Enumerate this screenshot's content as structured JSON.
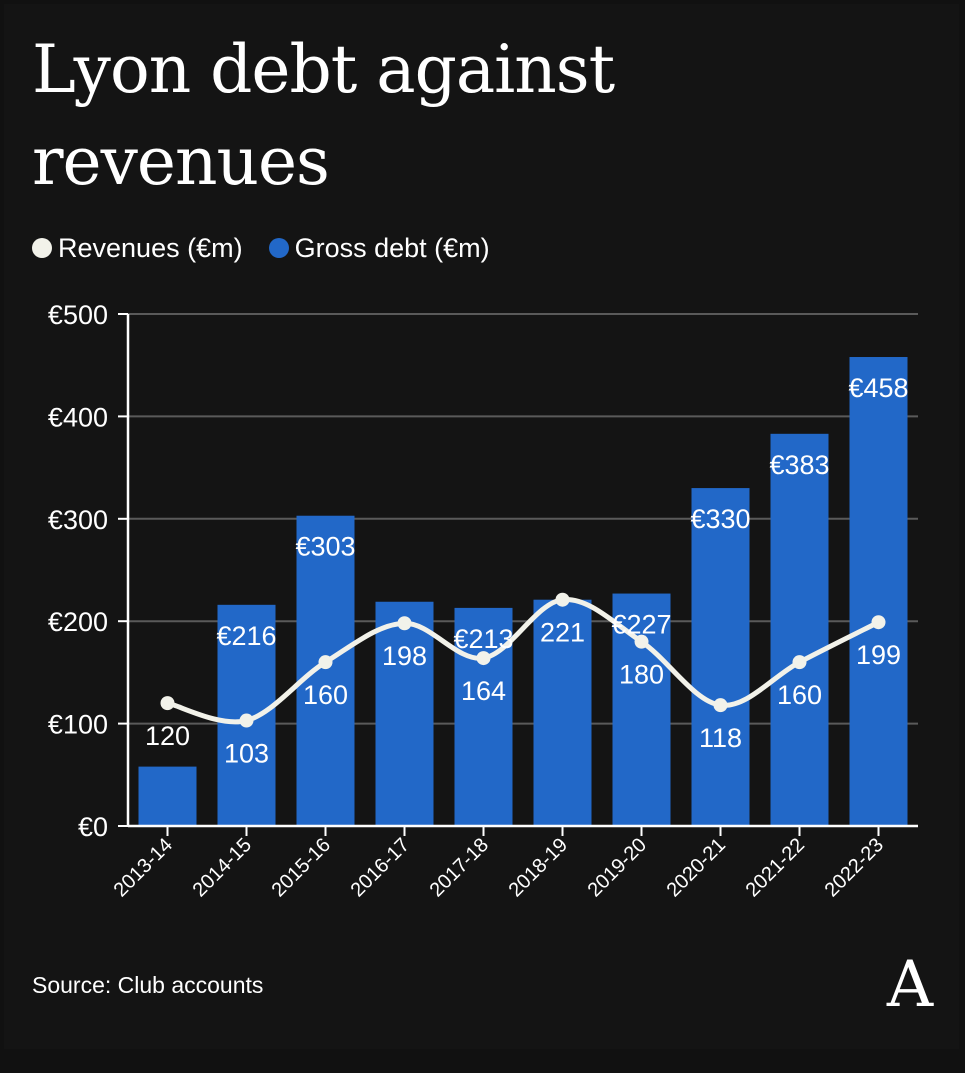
{
  "title": "Lyon debt against revenues",
  "source": "Source: Club accounts",
  "logo_text": "A",
  "colors": {
    "background": "#141414",
    "bar": "#2268c8",
    "line": "#f2f2ea",
    "grid": "#5a5a5a",
    "text": "#ffffff"
  },
  "legend": {
    "position": "top-left",
    "items": [
      {
        "label": "Revenues (€m)",
        "color": "#f2f2ea",
        "icon": "circle-icon"
      },
      {
        "label": "Gross debt (€m)",
        "color": "#2268c8",
        "icon": "circle-icon"
      }
    ]
  },
  "chart_data": {
    "type": "bar",
    "categories": [
      "2013-14",
      "2014-15",
      "2015-16",
      "2016-17",
      "2017-18",
      "2018-19",
      "2019-20",
      "2020-21",
      "2021-22",
      "2022-23"
    ],
    "series": [
      {
        "name": "Gross debt (€m)",
        "type": "bar",
        "values": [
          58,
          216,
          303,
          219,
          213,
          221,
          227,
          330,
          383,
          458
        ],
        "labels": [
          "",
          "€216",
          "€303",
          "",
          "€213",
          "",
          "€227",
          "€330",
          "€383",
          "€458"
        ]
      },
      {
        "name": "Revenues (€m)",
        "type": "line",
        "smooth": true,
        "values": [
          120,
          103,
          160,
          198,
          164,
          221,
          180,
          118,
          160,
          199
        ],
        "labels": [
          "120",
          "103",
          "160",
          "198",
          "164",
          "221",
          "180",
          "118",
          "160",
          "199"
        ]
      }
    ],
    "ylim": [
      0,
      500
    ],
    "yticks": [
      0,
      100,
      200,
      300,
      400,
      500
    ],
    "ytick_labels": [
      "€0",
      "€100",
      "€200",
      "€300",
      "€400",
      "€500"
    ],
    "grid": true,
    "xlabel": "",
    "ylabel": ""
  }
}
